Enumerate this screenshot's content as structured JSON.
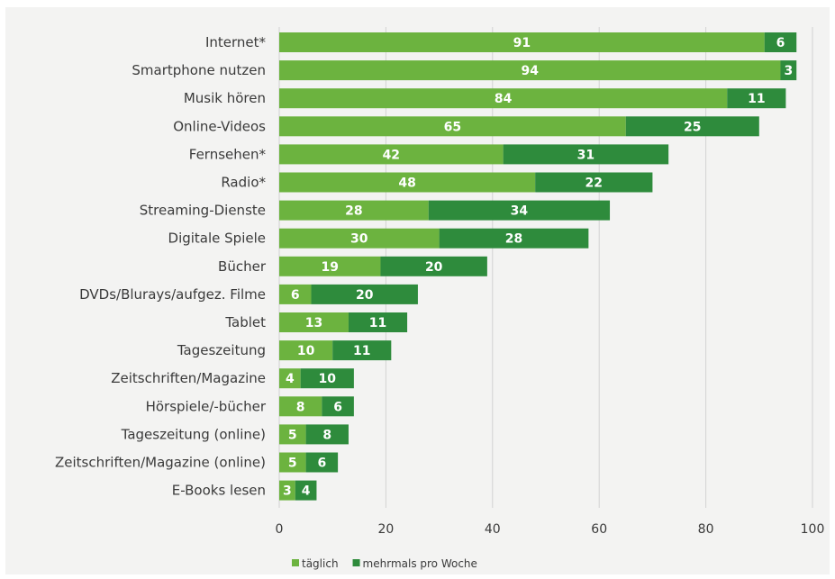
{
  "chart_data": {
    "type": "bar",
    "orientation": "horizontal",
    "stacked": true,
    "categories": [
      "Internet*",
      "Smartphone nutzen",
      "Musik hören",
      "Online-Videos",
      "Fernsehen*",
      "Radio*",
      "Streaming-Dienste",
      "Digitale Spiele",
      "Bücher",
      "DVDs/Blurays/aufgez. Filme",
      "Tablet",
      "Tageszeitung",
      "Zeitschriften/Magazine",
      "Hörspiele/-bücher",
      "Tageszeitung (online)",
      "Zeitschriften/Magazine (online)",
      "E-Books lesen"
    ],
    "series": [
      {
        "name": "täglich",
        "color": "#6cb33f",
        "values": [
          91,
          94,
          84,
          65,
          42,
          48,
          28,
          30,
          19,
          6,
          13,
          10,
          4,
          8,
          5,
          5,
          3
        ]
      },
      {
        "name": "mehrmals pro Woche",
        "color": "#2e8b3c",
        "values": [
          6,
          3,
          11,
          25,
          31,
          22,
          34,
          28,
          20,
          20,
          11,
          11,
          10,
          6,
          8,
          6,
          4
        ]
      }
    ],
    "xlim": [
      0,
      100
    ],
    "xticks": [
      0,
      20,
      40,
      60,
      80,
      100
    ],
    "grid": true,
    "legend_position": "bottom"
  }
}
